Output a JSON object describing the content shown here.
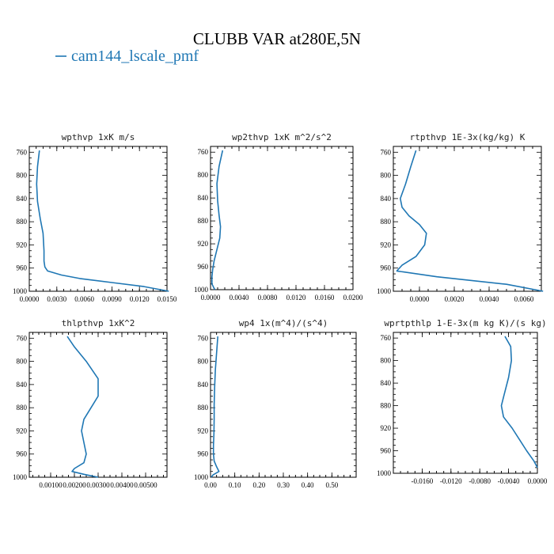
{
  "figure": {
    "title": "CLUBB VAR at280E,5N",
    "legend_label": "cam144_lscale_pmf",
    "legend_color": "#1f77b4"
  },
  "chart_data": [
    {
      "type": "line",
      "title": "wpthvp  1xK m/s",
      "xlim": [
        0,
        0.015
      ],
      "ylim": [
        1000,
        750
      ],
      "x_ticks": [
        "0.0000",
        "0.0030",
        "0.0060",
        "0.0090",
        "0.0120",
        "0.0150"
      ],
      "x_tick_values": [
        0,
        0.003,
        0.006,
        0.009,
        0.012,
        0.015
      ],
      "y_ticks": [
        "760",
        "800",
        "840",
        "880",
        "920",
        "960",
        "1000"
      ],
      "y_tick_values": [
        760,
        800,
        840,
        880,
        920,
        960,
        1000
      ],
      "series": [
        {
          "x": [
            0.0011,
            0.0009,
            0.0008,
            0.0009,
            0.0012,
            0.0015,
            0.0016,
            0.0016,
            0.0017,
            0.002,
            0.0035,
            0.0055,
            0.009,
            0.0125,
            0.0152
          ],
          "y": [
            757,
            785,
            815,
            845,
            875,
            900,
            930,
            948,
            958,
            965,
            972,
            978,
            985,
            992,
            1000
          ]
        }
      ]
    },
    {
      "type": "line",
      "title": "wp2thvp  1xK m^2/s^2",
      "xlim": [
        0,
        0.02
      ],
      "ylim": [
        1000,
        750
      ],
      "x_ticks": [
        "0.0000",
        "0.0040",
        "0.0080",
        "0.0120",
        "0.0160",
        "0.0200"
      ],
      "x_tick_values": [
        0,
        0.004,
        0.008,
        0.012,
        0.016,
        0.02
      ],
      "y_ticks": [
        "760",
        "800",
        "840",
        "880",
        "920",
        "960",
        "1000"
      ],
      "y_tick_values": [
        760,
        800,
        840,
        880,
        920,
        960,
        1000
      ],
      "series": [
        {
          "x": [
            0.0017,
            0.0012,
            0.0009,
            0.001,
            0.0012,
            0.0014,
            0.0013,
            0.0009,
            0.0005,
            0.0003,
            0.0002,
            0.0002,
            0.0006
          ],
          "y": [
            757,
            785,
            815,
            845,
            870,
            890,
            910,
            930,
            950,
            965,
            978,
            990,
            1000
          ]
        }
      ]
    },
    {
      "type": "line",
      "title": "rtpthvp  1E-3x(kg/kg) K",
      "xlim": [
        -0.0015,
        0.007
      ],
      "ylim": [
        1000,
        750
      ],
      "x_ticks": [
        "0.0000",
        "0.0020",
        "0.0040",
        "0.0060"
      ],
      "x_tick_values": [
        0,
        0.002,
        0.004,
        0.006
      ],
      "y_ticks": [
        "760",
        "800",
        "840",
        "880",
        "920",
        "960",
        "1000"
      ],
      "y_tick_values": [
        760,
        800,
        840,
        880,
        920,
        960,
        1000
      ],
      "series": [
        {
          "x": [
            -0.0002,
            -0.0005,
            -0.0008,
            -0.0011,
            -0.001,
            -0.0006,
            0,
            0.0004,
            0.0003,
            -0.0002,
            -0.001,
            -0.0013,
            0.001,
            0.005,
            0.0071
          ],
          "y": [
            757,
            785,
            815,
            840,
            855,
            870,
            885,
            900,
            920,
            940,
            955,
            965,
            975,
            988,
            1000
          ]
        }
      ]
    },
    {
      "type": "line",
      "title": "thlpthvp  1xK^2",
      "xlim": [
        0.0001,
        0.0059
      ],
      "ylim": [
        1000,
        750
      ],
      "x_ticks": [
        "0.00100",
        "0.00200",
        "0.00300",
        "0.00400",
        "0.00500"
      ],
      "x_tick_values": [
        0.001,
        0.002,
        0.003,
        0.004,
        0.005
      ],
      "y_ticks": [
        "760",
        "800",
        "840",
        "880",
        "920",
        "960",
        "1000"
      ],
      "y_tick_values": [
        760,
        800,
        840,
        880,
        920,
        960,
        1000
      ],
      "series": [
        {
          "x": [
            0.0017,
            0.002,
            0.0025,
            0.003,
            0.003,
            0.0027,
            0.0024,
            0.0023,
            0.0024,
            0.0025,
            0.0024,
            0.002,
            0.0019,
            0.0024,
            0.003
          ],
          "y": [
            757,
            775,
            800,
            830,
            860,
            880,
            900,
            920,
            940,
            960,
            975,
            985,
            990,
            995,
            1000
          ]
        }
      ]
    },
    {
      "type": "line",
      "title": "wp4  1x(m^4)/(s^4)",
      "xlim": [
        0,
        0.6
      ],
      "ylim": [
        1000,
        750
      ],
      "x_ticks": [
        "0.00",
        "0.10",
        "0.20",
        "0.30",
        "0.40",
        "0.50"
      ],
      "x_tick_values": [
        0,
        0.1,
        0.2,
        0.3,
        0.4,
        0.5
      ],
      "y_ticks": [
        "760",
        "800",
        "840",
        "880",
        "920",
        "960",
        "1000"
      ],
      "y_tick_values": [
        760,
        800,
        840,
        880,
        920,
        960,
        1000
      ],
      "series": [
        {
          "x": [
            0.03,
            0.025,
            0.02,
            0.017,
            0.015,
            0.015,
            0.014,
            0.012,
            0.012,
            0.015,
            0.025,
            0.035,
            0.01,
            0.003
          ],
          "y": [
            757,
            785,
            815,
            845,
            875,
            900,
            925,
            945,
            960,
            972,
            982,
            990,
            996,
            1000
          ]
        }
      ]
    },
    {
      "type": "line",
      "title": "wprtpthlp  1-E-3x(m kg K)/(s kg)",
      "xlim": [
        -0.02,
        0
      ],
      "ylim": [
        1000,
        750
      ],
      "x_ticks": [
        "-0.0160",
        "-0.0120",
        "-0.0080",
        "-0.0040",
        "0.0000"
      ],
      "x_tick_values": [
        -0.016,
        -0.012,
        -0.008,
        -0.004,
        0
      ],
      "y_ticks": [
        "760",
        "800",
        "840",
        "880",
        "920",
        "960",
        "1000"
      ],
      "y_tick_values": [
        760,
        800,
        840,
        880,
        920,
        960,
        1000
      ],
      "series": [
        {
          "x": [
            -0.0045,
            -0.0037,
            -0.0036,
            -0.004,
            -0.0046,
            -0.005,
            -0.0047,
            -0.0035,
            -0.0025,
            -0.0015,
            -0.0005,
            0
          ],
          "y": [
            757,
            775,
            800,
            830,
            860,
            880,
            900,
            920,
            940,
            960,
            978,
            990
          ]
        }
      ]
    }
  ]
}
